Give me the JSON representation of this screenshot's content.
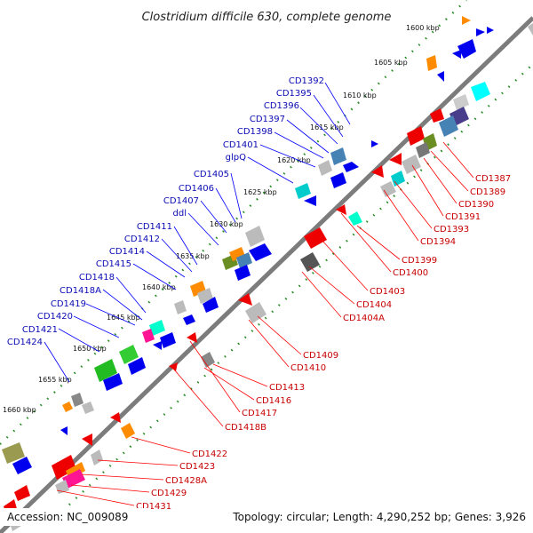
{
  "title": "Clostridium difficile 630, complete genome",
  "footer": {
    "accession": "Accession: NC_009089",
    "summary": "Topology: circular; Length: 4,290,252 bp; Genes: 3,926"
  },
  "kbp_ticks": [
    "1600 kbp",
    "1605 kbp",
    "1610 kbp",
    "1615 kbp",
    "1620 kbp",
    "1625 kbp",
    "1630 kbp",
    "1635 kbp",
    "1640 kbp",
    "1645 kbp",
    "1650 kbp",
    "1655 kbp",
    "1660 kbp"
  ],
  "top_genes": [
    "CD1392",
    "CD1395",
    "CD1396",
    "CD1397",
    "CD1398",
    "CD1401",
    "glpQ",
    "CD1405",
    "CD1406",
    "CD1407",
    "ddl",
    "CD1411",
    "CD1412",
    "CD1414",
    "CD1415",
    "CD1418",
    "CD1418A",
    "CD1419",
    "CD1420",
    "CD1421",
    "CD1424"
  ],
  "bottom_genes": [
    "CD1387",
    "CD1389",
    "CD1390",
    "CD1391",
    "CD1393",
    "CD1394",
    "CD1399",
    "CD1400",
    "CD1403",
    "CD1404",
    "CD1404A",
    "CD1409",
    "CD1410",
    "CD1413",
    "CD1416",
    "CD1417",
    "CD1418B",
    "CD1422",
    "CD1423",
    "CD1428A",
    "CD1429",
    "CD1431"
  ],
  "colors": {
    "backbone": "#808080",
    "ruler": "#228b22",
    "forward_label": "#0a0ab4",
    "reverse_label": "#c80000",
    "blue_gene": "#0000ee",
    "red_gene": "#ee0000"
  }
}
